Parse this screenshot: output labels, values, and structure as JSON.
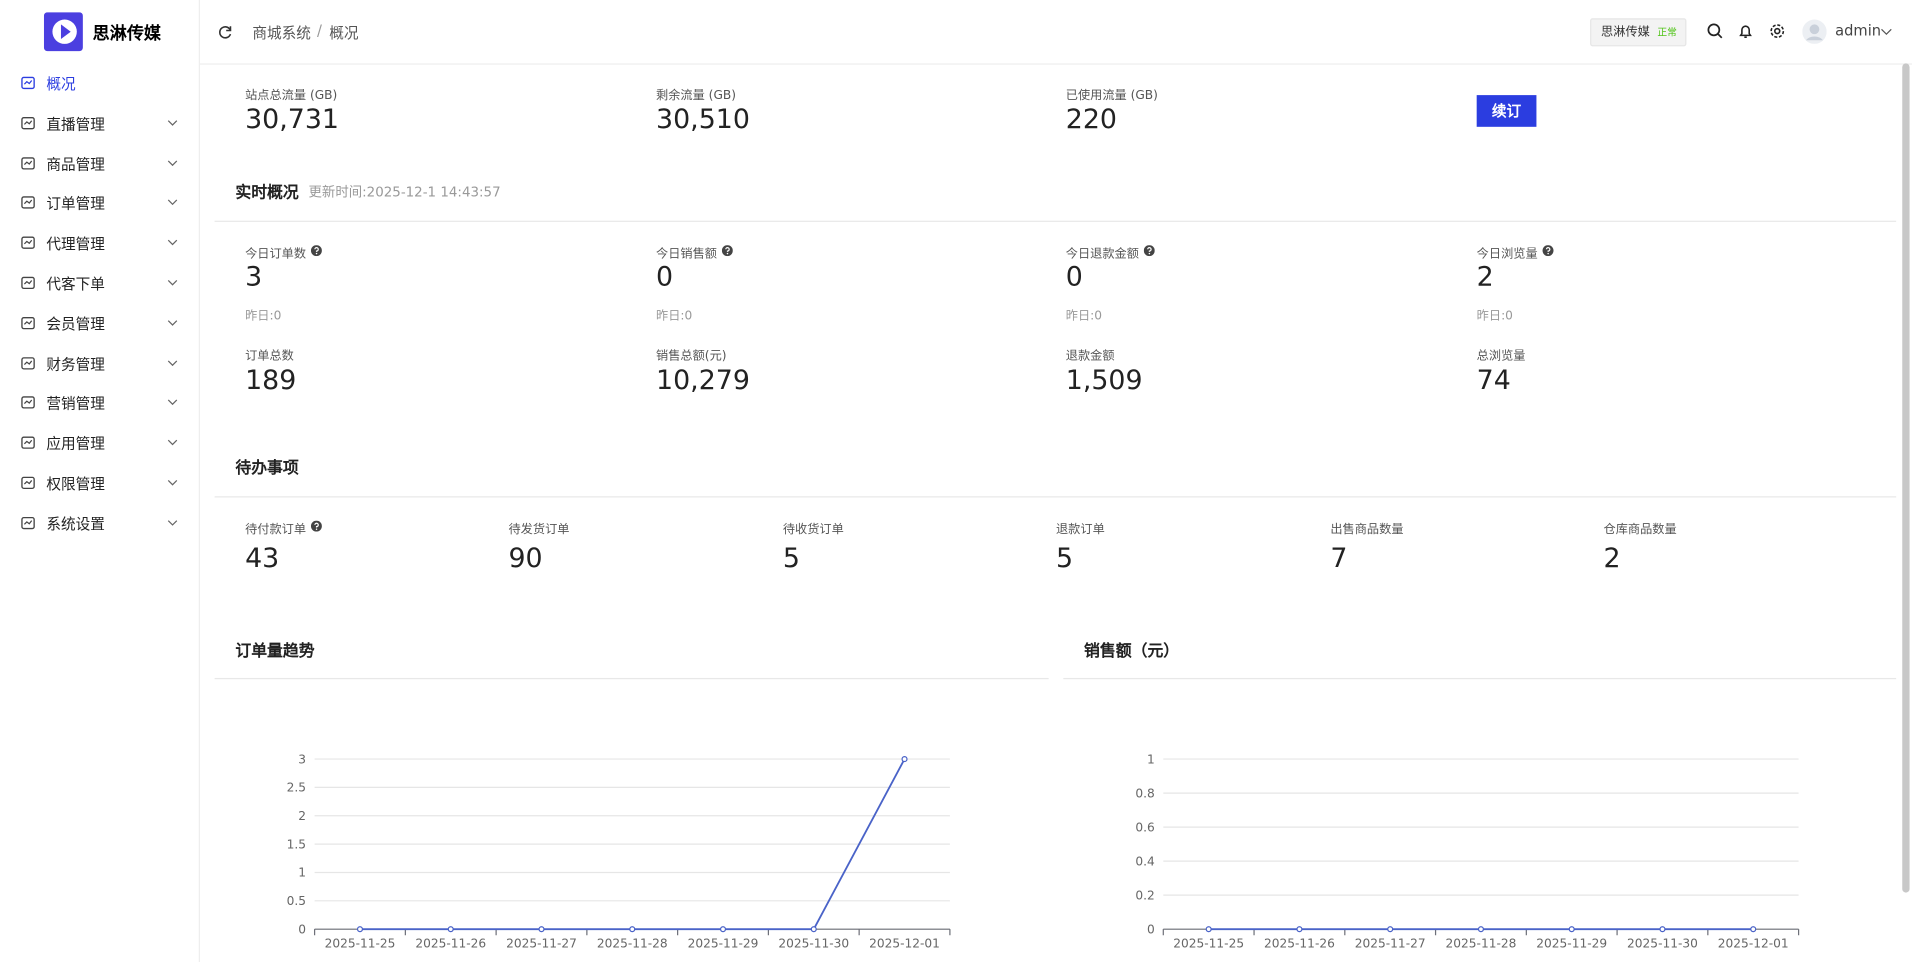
{
  "sidebar": {
    "brand": "思淋传媒",
    "menu": [
      "概况",
      "直播管理",
      "商品管理",
      "订单管理",
      "代理管理",
      "代客下单",
      "会员管理",
      "财务管理",
      "营销管理",
      "应用管理",
      "权限管理",
      "系统设置"
    ]
  },
  "header": {
    "breadcrumb": [
      "商城系统",
      "概况"
    ],
    "separator": "/",
    "site": "思淋传媒",
    "status": "正常",
    "user": "admin"
  },
  "traffic": {
    "items": [
      {
        "label": "站点总流量 (GB)",
        "value": "30,731"
      },
      {
        "label": "剩余流量 (GB)",
        "value": "30,510"
      },
      {
        "label": "已使用流量 (GB)",
        "value": "220"
      }
    ],
    "button": "续订"
  },
  "realtime": {
    "title": "实时概况",
    "updated": "更新时间:2025-12-1 14:43:57",
    "today": [
      {
        "label": "今日订单数",
        "value": "3",
        "yesterday": "昨日:0"
      },
      {
        "label": "今日销售额",
        "value": "0",
        "yesterday": "昨日:0"
      },
      {
        "label": "今日退款金额",
        "value": "0",
        "yesterday": "昨日:0"
      },
      {
        "label": "今日浏览量",
        "value": "2",
        "yesterday": "昨日:0"
      }
    ],
    "totals": [
      {
        "label": "订单总数",
        "value": "189"
      },
      {
        "label": "销售总额(元)",
        "value": "10,279"
      },
      {
        "label": "退款金额",
        "value": "1,509"
      },
      {
        "label": "总浏览量",
        "value": "74"
      }
    ]
  },
  "todo": {
    "title": "待办事项",
    "items": [
      {
        "label": "待付款订单",
        "value": "43"
      },
      {
        "label": "待发货订单",
        "value": "90"
      },
      {
        "label": "待收货订单",
        "value": "5"
      },
      {
        "label": "退款订单",
        "value": "5"
      },
      {
        "label": "出售商品数量",
        "value": "7"
      },
      {
        "label": "仓库商品数量",
        "value": "2"
      }
    ]
  },
  "charts": [
    {
      "type": "line",
      "title": "订单量趋势",
      "categories": [
        "2025-11-25",
        "2025-11-26",
        "2025-11-27",
        "2025-11-28",
        "2025-11-29",
        "2025-11-30",
        "2025-12-01"
      ],
      "values": [
        0,
        0,
        0,
        0,
        0,
        0,
        3
      ],
      "ylim": [
        0,
        3
      ],
      "yticks": [
        0,
        0.5,
        1,
        1.5,
        2,
        2.5,
        3
      ],
      "color": "#4a63c8",
      "grid": true
    },
    {
      "type": "line",
      "title": "销售额（元）",
      "categories": [
        "2025-11-25",
        "2025-11-26",
        "2025-11-27",
        "2025-11-28",
        "2025-11-29",
        "2025-11-30",
        "2025-12-01"
      ],
      "values": [
        0,
        0,
        0,
        0,
        0,
        0,
        0
      ],
      "ylim": [
        0,
        1
      ],
      "yticks": [
        0,
        0.2,
        0.4,
        0.6,
        0.8,
        1
      ],
      "color": "#4a63c8",
      "grid": true
    }
  ]
}
